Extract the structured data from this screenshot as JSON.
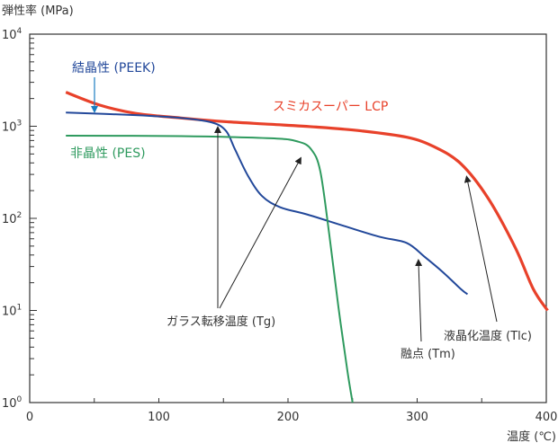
{
  "chart_data": {
    "type": "line",
    "ylabel": "弾性率 (MPa)",
    "xlabel": "温度 (℃)",
    "xlim": [
      0,
      400
    ],
    "ylim": [
      1,
      10000
    ],
    "yscale": "log",
    "grid": false,
    "xticks": [
      0,
      100,
      200,
      300,
      400
    ],
    "yticks": [
      {
        "base": "10",
        "exp": "0",
        "value": 1
      },
      {
        "base": "10",
        "exp": "1",
        "value": 10
      },
      {
        "base": "10",
        "exp": "2",
        "value": 100
      },
      {
        "base": "10",
        "exp": "3",
        "value": 1000
      },
      {
        "base": "10",
        "exp": "4",
        "value": 10000
      }
    ],
    "series": [
      {
        "name": "スミカスーパー LCP",
        "color": "#e8412a",
        "x": [
          28,
          54,
          82,
          117,
          152,
          187,
          222,
          257,
          292,
          313,
          334,
          355,
          376,
          390,
          401
        ],
        "y": [
          2340,
          1700,
          1380,
          1230,
          1120,
          1050,
          980,
          890,
          760,
          600,
          390,
          165,
          48,
          17,
          10
        ]
      },
      {
        "name": "結晶性 (PEEK)",
        "color": "#22489a",
        "x": [
          28,
          82,
          117,
          141,
          152,
          159,
          169,
          180,
          194,
          215,
          243,
          271,
          292,
          306,
          320,
          334,
          339
        ],
        "y": [
          1410,
          1320,
          1230,
          1100,
          890,
          560,
          290,
          174,
          132,
          110,
          83,
          63,
          54,
          38,
          26,
          17,
          15
        ]
      },
      {
        "name": "非晶性 (PES)",
        "color": "#2e9a5e",
        "x": [
          28,
          117,
          187,
          208,
          218,
          225,
          232,
          239,
          246,
          250
        ],
        "y": [
          790,
          780,
          740,
          680,
          560,
          325,
          66,
          11,
          2.2,
          1
        ]
      }
    ],
    "annotations": [
      {
        "text": "ガラス転移温度 (Tg)"
      },
      {
        "text": "融点 (Tm)"
      },
      {
        "text": "液晶化温度 (Tlc)"
      }
    ]
  }
}
